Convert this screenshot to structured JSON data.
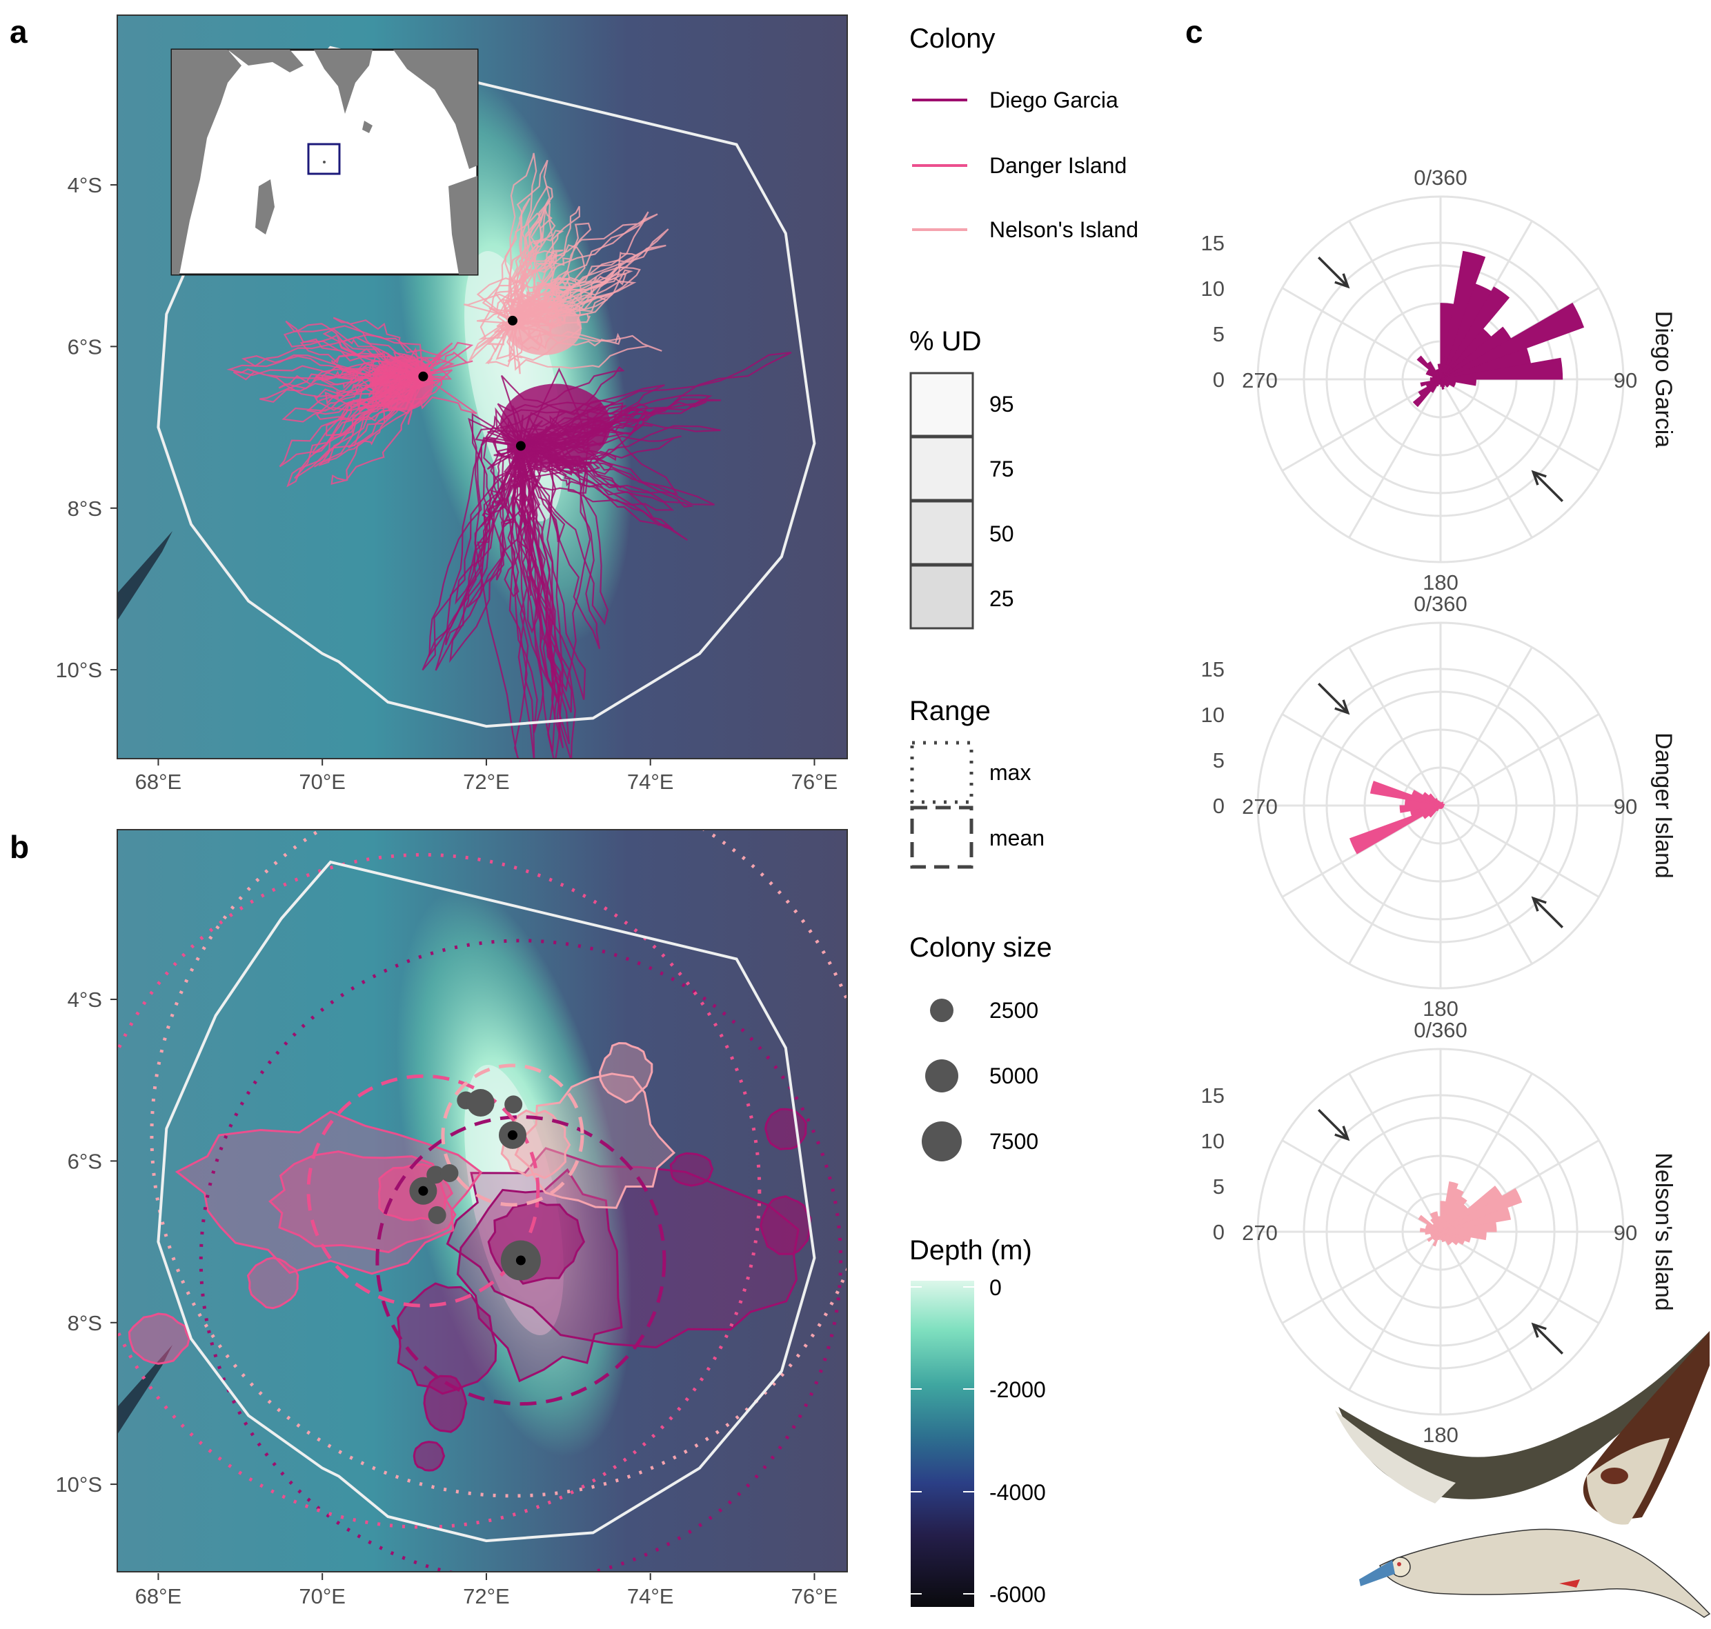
{
  "panel_letters": {
    "a": "a",
    "b": "b",
    "c": "c"
  },
  "colors": {
    "diego_garcia": "#9e0e6e",
    "danger_island": "#ec4f8e",
    "nelsons_island": "#f5a3ae",
    "boundary": "#eef0f0",
    "land": "#808080",
    "inset_box": "#1c1a7a",
    "arrow": "#333333",
    "colony_point": "#555555"
  },
  "map_axes": {
    "x_ticks": [
      "68°E",
      "70°E",
      "72°E",
      "74°E",
      "76°E"
    ],
    "y_ticks": [
      "4°S",
      "6°S",
      "8°S",
      "10°S"
    ],
    "xlim": [
      67.5,
      76.4
    ],
    "ylim": [
      -11.1,
      -1.9
    ]
  },
  "legend": {
    "colony": {
      "title": "Colony",
      "items": [
        {
          "label": "Diego Garcia",
          "color": "#9e0e6e"
        },
        {
          "label": "Danger Island",
          "color": "#ec4f8e"
        },
        {
          "label": "Nelson's Island",
          "color": "#f5a3ae"
        }
      ]
    },
    "ud": {
      "title": "% UD",
      "items": [
        "95",
        "75",
        "50",
        "25"
      ]
    },
    "range": {
      "title": "Range",
      "items": [
        "max",
        "mean"
      ]
    },
    "colony_size": {
      "title": "Colony size",
      "items": [
        "2500",
        "5000",
        "7500"
      ]
    },
    "depth": {
      "title": "Depth (m)",
      "ticks": [
        "0",
        "-2000",
        "-4000",
        "-6000"
      ]
    }
  },
  "chart_data": [
    {
      "panel": "a",
      "type": "scatter",
      "description_series": "GPS foraging tracks by colony over bathymetry",
      "colonies": [
        {
          "name": "Diego Garcia",
          "lon": 72.42,
          "lat": -7.23
        },
        {
          "name": "Danger Island",
          "lon": 71.23,
          "lat": -6.37
        },
        {
          "name": "Nelson's Island",
          "lon": 72.32,
          "lat": -5.68
        }
      ],
      "xlim": [
        67.5,
        76.4
      ],
      "ylim": [
        -11.1,
        -1.9
      ]
    },
    {
      "panel": "b",
      "type": "scatter",
      "colony_points": [
        {
          "lon": 72.42,
          "lat": -7.23,
          "size": 7500
        },
        {
          "lon": 72.32,
          "lat": -5.68,
          "size": 5000
        },
        {
          "lon": 71.23,
          "lat": -6.37,
          "size": 5000
        },
        {
          "lon": 71.38,
          "lat": -6.17,
          "size": 2500
        },
        {
          "lon": 71.55,
          "lat": -6.15,
          "size": 2500
        },
        {
          "lon": 71.75,
          "lat": -5.25,
          "size": 2500
        },
        {
          "lon": 71.93,
          "lat": -5.28,
          "size": 5000
        },
        {
          "lon": 72.33,
          "lat": -5.3,
          "size": 2500
        },
        {
          "lon": 71.4,
          "lat": -6.67,
          "size": 2500
        }
      ],
      "ranges_deg": {
        "diego_garcia": {
          "mean": 1.75,
          "max": 3.9
        },
        "danger_island": {
          "mean": 1.4,
          "max": 4.1
        },
        "nelsons_island": {
          "mean": 0.85,
          "max": 4.4
        }
      },
      "xlim": [
        67.5,
        76.4
      ],
      "ylim": [
        -11.1,
        -1.9
      ]
    },
    {
      "panel": "c",
      "type": "bar",
      "polar": true,
      "angle_labels": [
        "0/360",
        "90",
        "180",
        "270"
      ],
      "radial_ticks": [
        "0",
        "5",
        "10",
        "15"
      ],
      "rlim": [
        0,
        18
      ],
      "bin_width_deg": 10,
      "facets": [
        {
          "name": "Diego Garcia",
          "color": "#9e0e6e",
          "bins_center_deg": [
            5,
            15,
            25,
            35,
            45,
            55,
            65,
            75,
            85,
            95,
            105,
            115,
            125,
            135,
            145,
            155,
            165,
            175,
            185,
            195,
            205,
            215,
            225,
            235,
            245,
            255,
            265,
            275,
            285,
            295,
            305,
            315,
            325,
            335,
            345,
            355
          ],
          "values": [
            7.5,
            12.8,
            10,
            10.5,
            6.5,
            8,
            15,
            9,
            12,
            3.5,
            1.5,
            1.5,
            1,
            1,
            0.7,
            0.8,
            1,
            0.7,
            0.5,
            0.5,
            0.7,
            1.5,
            3.5,
            2.5,
            1.5,
            2,
            1,
            1,
            0.8,
            1.5,
            1.5,
            3,
            2,
            1,
            1,
            1.5
          ]
        },
        {
          "name": "Danger Island",
          "color": "#ec4f8e",
          "bins_center_deg": [
            5,
            15,
            25,
            35,
            45,
            55,
            65,
            75,
            85,
            95,
            105,
            115,
            125,
            135,
            145,
            155,
            165,
            175,
            185,
            195,
            205,
            215,
            225,
            235,
            245,
            255,
            265,
            275,
            285,
            295,
            305,
            315,
            325,
            335,
            345,
            355
          ],
          "values": [
            0.3,
            0.3,
            0.3,
            0.4,
            0.3,
            0.3,
            0.3,
            0.4,
            0.3,
            0.3,
            0.3,
            0.3,
            0.3,
            0.3,
            0.3,
            0.3,
            0.3,
            0.3,
            0.3,
            0.3,
            0.3,
            0.6,
            1.5,
            2,
            9.5,
            3,
            4,
            3.5,
            7,
            3,
            2,
            1.5,
            0.8,
            0.5,
            0.4,
            0.3
          ]
        },
        {
          "name": "Nelson's Island",
          "color": "#f5a3ae",
          "bins_center_deg": [
            5,
            15,
            25,
            35,
            45,
            55,
            65,
            75,
            85,
            95,
            105,
            115,
            125,
            135,
            145,
            155,
            165,
            175,
            185,
            195,
            205,
            215,
            225,
            235,
            245,
            255,
            265,
            275,
            285,
            295,
            305,
            315,
            325,
            335,
            345,
            355
          ],
          "values": [
            3,
            5,
            4.5,
            4,
            3.5,
            7,
            8.5,
            7,
            5.5,
            4.5,
            3,
            2.5,
            2,
            1.5,
            1.5,
            1,
            1,
            0.8,
            0.7,
            0.8,
            1.5,
            1,
            1,
            1.5,
            1,
            1,
            1.5,
            2,
            1.5,
            1.5,
            2.5,
            1,
            1.5,
            2,
            2,
            1.5
          ]
        }
      ],
      "wind_arrows_deg": [
        315,
        135
      ]
    }
  ]
}
